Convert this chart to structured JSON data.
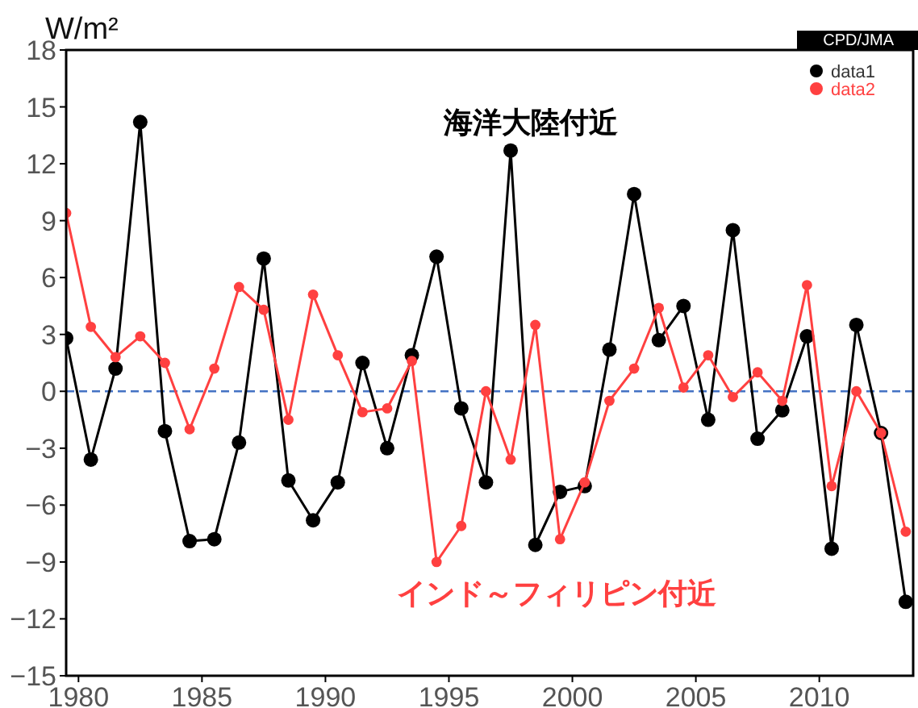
{
  "chart_data": {
    "type": "line",
    "ylabel": "W/m²",
    "x": [
      1979.5,
      1980.5,
      1981.5,
      1982.5,
      1983.5,
      1984.5,
      1985.5,
      1986.5,
      1987.5,
      1988.5,
      1989.5,
      1990.5,
      1991.5,
      1992.5,
      1993.5,
      1994.5,
      1995.5,
      1996.5,
      1997.5,
      1998.5,
      1999.5,
      2000.5,
      2001.5,
      2002.5,
      2003.5,
      2004.5,
      2005.5,
      2006.5,
      2007.5,
      2008.5,
      2009.5,
      2010.5,
      2011.5,
      2012.5,
      2013.5
    ],
    "series": [
      {
        "name": "data1",
        "color": "#000000",
        "values": [
          2.8,
          -3.6,
          1.2,
          14.2,
          -2.1,
          -7.9,
          -7.8,
          -2.7,
          7.0,
          -4.7,
          -6.8,
          -4.8,
          1.5,
          -3.0,
          1.9,
          7.1,
          -0.9,
          -4.8,
          12.7,
          -8.1,
          -5.3,
          -5.0,
          2.2,
          10.4,
          2.7,
          4.5,
          -1.5,
          8.5,
          -2.5,
          -1.0,
          2.9,
          -8.3,
          3.5,
          -2.2,
          -11.1
        ]
      },
      {
        "name": "data2",
        "color": "#ff4040",
        "values": [
          9.4,
          3.4,
          1.8,
          2.9,
          1.5,
          -2.0,
          1.2,
          5.5,
          4.3,
          -1.5,
          5.1,
          1.9,
          -1.1,
          -0.9,
          1.6,
          -9.0,
          -7.1,
          0.0,
          -3.6,
          3.5,
          -7.8,
          -4.8,
          -0.5,
          1.2,
          4.4,
          0.2,
          1.9,
          -0.3,
          1.0,
          -0.5,
          5.6,
          -5.0,
          0.0,
          -2.2,
          -7.4
        ]
      }
    ],
    "xlim": [
      1979.5,
      2013.8
    ],
    "xticks": [
      1980,
      1985,
      1990,
      1995,
      2000,
      2005,
      2010
    ],
    "ylim": [
      -15,
      18
    ],
    "yticks": [
      -15,
      -12,
      -9,
      -6,
      -3,
      0,
      3,
      6,
      9,
      12,
      15,
      18
    ],
    "ref_lines": [
      {
        "axis": "y",
        "value": 0,
        "color": "#4472c4",
        "line_style": "dashed"
      }
    ],
    "marker": "circle",
    "line_style": "solid",
    "legend": "top right",
    "grid": false,
    "annotations": [
      "海洋大陸付近",
      "インド～フィリピン付近",
      "CPD/JMA"
    ]
  }
}
